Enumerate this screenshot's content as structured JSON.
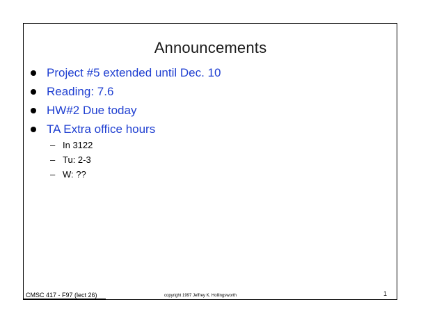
{
  "slide": {
    "title": "Announcements",
    "bullets": [
      "Project #5 extended until Dec. 10",
      "Reading: 7.6",
      "HW#2 Due today",
      "TA Extra office hours"
    ],
    "sub_bullets": [
      "In 3122",
      "Tu: 2-3",
      "W: ??"
    ],
    "dash": "–"
  },
  "footer": {
    "course": "CMSC 417 - F97  (lect 26)",
    "copyright": "copyright 1997 Jeffrey K. Hollingsworth",
    "page": "1"
  },
  "colors": {
    "bullet_text": "#1f3fd1",
    "title_text": "#1a1a1a"
  }
}
